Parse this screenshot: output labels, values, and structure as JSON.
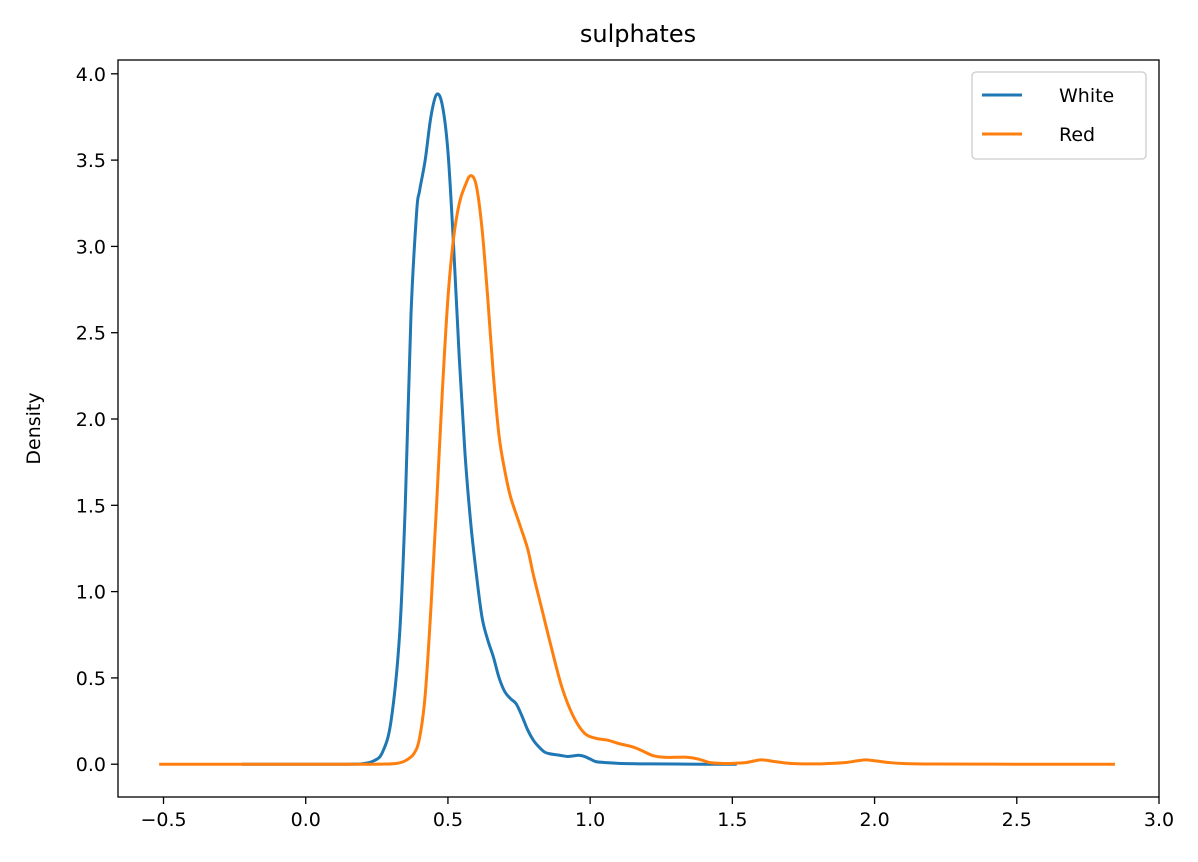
{
  "chart_data": {
    "type": "line",
    "title": "sulphates",
    "xlabel": "",
    "ylabel": "Density",
    "xlim": [
      -0.66,
      3.0
    ],
    "ylim": [
      -0.19,
      4.08
    ],
    "xticks": [
      -0.5,
      0.0,
      0.5,
      1.0,
      1.5,
      2.0,
      2.5,
      3.0
    ],
    "xtick_labels": [
      "−0.5",
      "0.0",
      "0.5",
      "1.0",
      "1.5",
      "2.0",
      "2.5",
      "3.0"
    ],
    "yticks": [
      0.0,
      0.5,
      1.0,
      1.5,
      2.0,
      2.5,
      3.0,
      3.5,
      4.0
    ],
    "ytick_labels": [
      "0.0",
      "0.5",
      "1.0",
      "1.5",
      "2.0",
      "2.5",
      "3.0",
      "3.5",
      "4.0"
    ],
    "grid": false,
    "legend_position": "top-right",
    "series": [
      {
        "name": "White",
        "color": "#1f77b4",
        "x": [
          -0.22,
          0.0,
          0.15,
          0.2,
          0.24,
          0.27,
          0.3,
          0.33,
          0.35,
          0.37,
          0.39,
          0.4,
          0.42,
          0.44,
          0.46,
          0.48,
          0.5,
          0.52,
          0.54,
          0.56,
          0.58,
          0.6,
          0.62,
          0.64,
          0.66,
          0.68,
          0.7,
          0.72,
          0.74,
          0.76,
          0.78,
          0.8,
          0.82,
          0.84,
          0.86,
          0.88,
          0.9,
          0.92,
          0.94,
          0.96,
          0.98,
          1.0,
          1.02,
          1.05,
          1.1,
          1.2,
          1.3,
          1.4,
          1.51
        ],
        "values": [
          0.0,
          0.0,
          0.0,
          0.003,
          0.02,
          0.07,
          0.25,
          0.75,
          1.5,
          2.6,
          3.2,
          3.32,
          3.5,
          3.75,
          3.88,
          3.82,
          3.55,
          3.0,
          2.35,
          1.8,
          1.4,
          1.1,
          0.85,
          0.72,
          0.62,
          0.5,
          0.42,
          0.38,
          0.35,
          0.28,
          0.2,
          0.14,
          0.1,
          0.07,
          0.06,
          0.055,
          0.05,
          0.045,
          0.048,
          0.052,
          0.045,
          0.03,
          0.015,
          0.01,
          0.005,
          0.002,
          0.001,
          0.0,
          0.0
        ]
      },
      {
        "name": "Red",
        "color": "#ff7f0e",
        "x": [
          -0.51,
          0.0,
          0.2,
          0.28,
          0.32,
          0.35,
          0.38,
          0.4,
          0.42,
          0.44,
          0.46,
          0.48,
          0.5,
          0.52,
          0.54,
          0.56,
          0.58,
          0.6,
          0.62,
          0.64,
          0.66,
          0.68,
          0.7,
          0.72,
          0.75,
          0.78,
          0.8,
          0.83,
          0.86,
          0.9,
          0.94,
          0.98,
          1.02,
          1.06,
          1.1,
          1.15,
          1.18,
          1.22,
          1.26,
          1.3,
          1.34,
          1.38,
          1.42,
          1.46,
          1.5,
          1.55,
          1.6,
          1.65,
          1.7,
          1.75,
          1.8,
          1.85,
          1.9,
          1.94,
          1.97,
          2.0,
          2.05,
          2.1,
          2.2,
          2.5,
          2.84
        ],
        "values": [
          0.0,
          0.0,
          0.0,
          0.001,
          0.005,
          0.02,
          0.06,
          0.15,
          0.4,
          0.9,
          1.5,
          2.15,
          2.7,
          3.05,
          3.25,
          3.35,
          3.41,
          3.35,
          3.1,
          2.7,
          2.25,
          1.9,
          1.7,
          1.55,
          1.4,
          1.25,
          1.1,
          0.9,
          0.7,
          0.45,
          0.28,
          0.18,
          0.15,
          0.14,
          0.12,
          0.1,
          0.08,
          0.05,
          0.04,
          0.04,
          0.04,
          0.03,
          0.01,
          0.005,
          0.005,
          0.01,
          0.025,
          0.015,
          0.005,
          0.002,
          0.002,
          0.005,
          0.01,
          0.02,
          0.025,
          0.02,
          0.01,
          0.004,
          0.001,
          0.0,
          0.0
        ]
      }
    ]
  }
}
